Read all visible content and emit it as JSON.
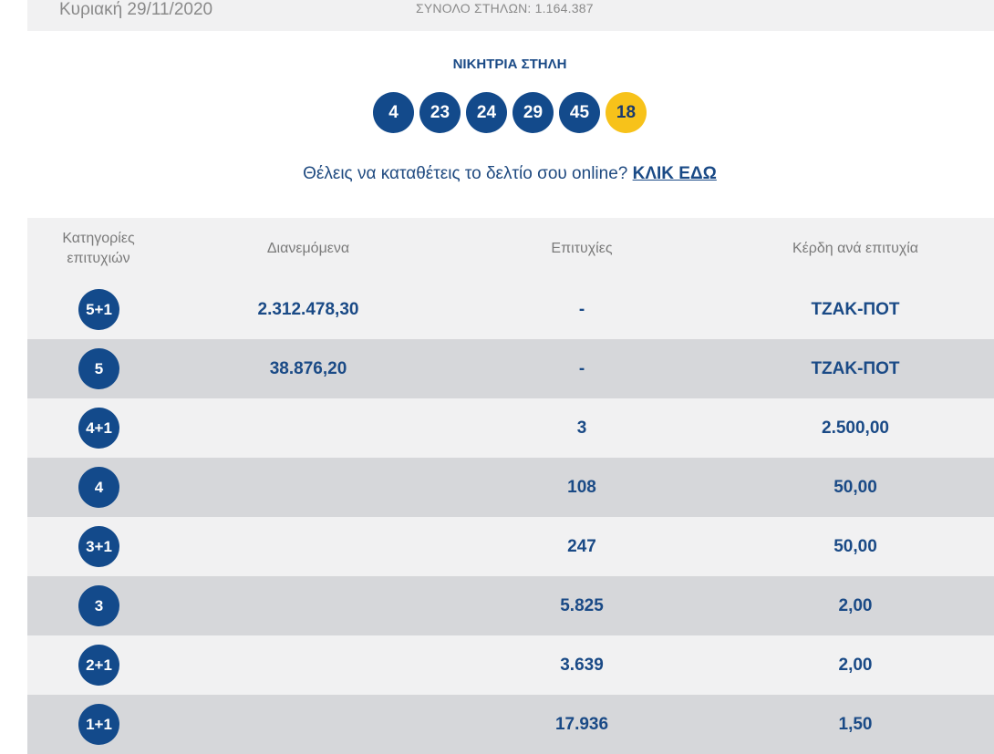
{
  "header": {
    "draw_date": "Κυριακή 29/11/2020",
    "total_columns": "ΣΥΝΟΛΟ ΣΤΗΛΩΝ: 1.164.387"
  },
  "winning": {
    "title": "ΝΙΚΗΤΡΙΑ ΣΤΗΛΗ",
    "numbers": [
      "4",
      "23",
      "24",
      "29",
      "45"
    ],
    "bonus": "18"
  },
  "online": {
    "prompt": "Θέλεις να καταθέτεις το δελτίο σου online?",
    "link": "ΚΛΙΚ ΕΔΩ"
  },
  "table": {
    "headers": {
      "categories_line1": "Κατηγορίες",
      "categories_line2": "επιτυχιών",
      "distributed": "Διανεμόμενα",
      "winners": "Επιτυχίες",
      "prize": "Κέρδη ανά επιτυχία"
    },
    "rows": [
      {
        "category": "5+1",
        "distributed": "2.312.478,30",
        "winners": "-",
        "prize": "ΤΖΑΚ-ΠΟΤ"
      },
      {
        "category": "5",
        "distributed": "38.876,20",
        "winners": "-",
        "prize": "ΤΖΑΚ-ΠΟΤ"
      },
      {
        "category": "4+1",
        "distributed": "",
        "winners": "3",
        "prize": "2.500,00"
      },
      {
        "category": "4",
        "distributed": "",
        "winners": "108",
        "prize": "50,00"
      },
      {
        "category": "3+1",
        "distributed": "",
        "winners": "247",
        "prize": "50,00"
      },
      {
        "category": "3",
        "distributed": "",
        "winners": "5.825",
        "prize": "2,00"
      },
      {
        "category": "2+1",
        "distributed": "",
        "winners": "3.639",
        "prize": "2,00"
      },
      {
        "category": "1+1",
        "distributed": "",
        "winners": "17.936",
        "prize": "1,50"
      }
    ]
  },
  "colors": {
    "ball": "#134a8b",
    "bonus_ball": "#f7c21a",
    "row_light": "#f1f1f2",
    "row_dark": "#d6d7da",
    "text_blue": "#1a4a86"
  }
}
